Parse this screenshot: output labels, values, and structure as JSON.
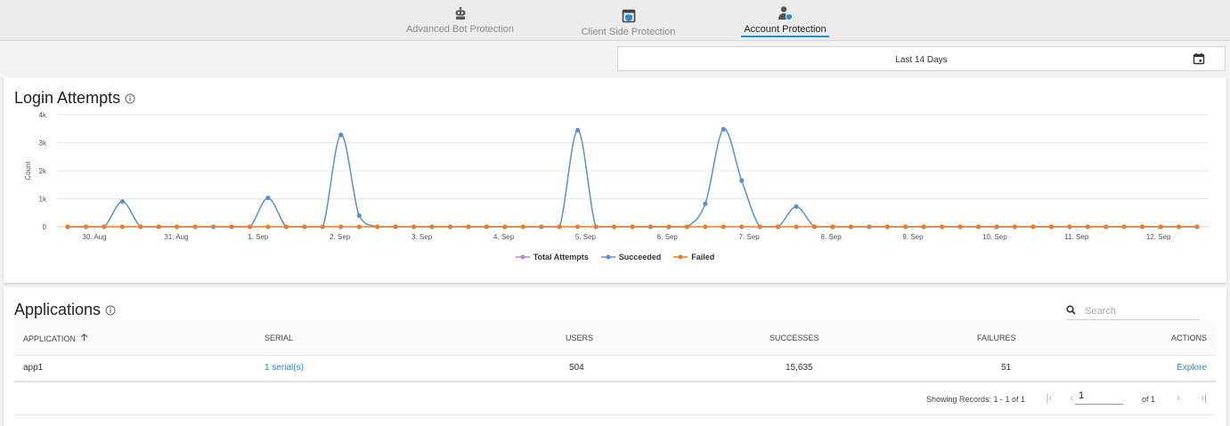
{
  "tabs": [
    {
      "label": "Advanced Bot Protection",
      "icon": "robot-icon",
      "active": false
    },
    {
      "label": "Client Side Protection",
      "icon": "browser-shield-icon",
      "active": false
    },
    {
      "label": "Account Protection",
      "icon": "user-shield-icon",
      "active": true
    }
  ],
  "date_range": {
    "label": "Last 14 Days",
    "icon": "calendar-icon"
  },
  "login_attempts": {
    "title": "Login Attempts",
    "info_icon": "info-icon"
  },
  "chart_data": {
    "type": "line",
    "title": "Login Attempts",
    "ylabel": "Count",
    "xlabel": "",
    "ylim": [
      0,
      4000
    ],
    "y_ticks": [
      "0",
      "1k",
      "2k",
      "3k",
      "4k"
    ],
    "x_ticks": [
      "30. Aug",
      "31. Aug",
      "1. Sep",
      "2. Sep",
      "3. Sep",
      "4. Sep",
      "5. Sep",
      "6. Sep",
      "7. Sep",
      "8. Sep",
      "9. Sep",
      "10. Sep",
      "11. Sep",
      "12. Sep"
    ],
    "legend": "bottom",
    "series": [
      {
        "name": "Total Attempts",
        "color": "#b388e0",
        "values": []
      },
      {
        "name": "Succeeded",
        "color": "#5b8fd1",
        "values": [
          0,
          0,
          0,
          900,
          0,
          0,
          0,
          0,
          0,
          0,
          0,
          1030,
          0,
          0,
          0,
          3280,
          400,
          0,
          0,
          0,
          0,
          0,
          0,
          0,
          0,
          0,
          0,
          0,
          3450,
          0,
          0,
          0,
          0,
          0,
          0,
          820,
          3480,
          1650,
          0,
          0,
          720,
          0,
          0,
          0,
          0,
          0,
          0,
          0,
          0,
          0,
          0,
          0,
          0,
          0,
          0,
          0,
          0,
          0,
          0,
          0,
          0,
          0,
          0
        ]
      },
      {
        "name": "Failed",
        "color": "#f07c2a",
        "values": [
          0,
          0,
          0,
          0,
          0,
          0,
          0,
          0,
          0,
          0,
          0,
          0,
          0,
          0,
          0,
          0,
          0,
          0,
          0,
          0,
          0,
          0,
          0,
          0,
          0,
          0,
          0,
          0,
          0,
          0,
          0,
          0,
          0,
          0,
          0,
          0,
          0,
          0,
          0,
          0,
          0,
          0,
          0,
          0,
          0,
          0,
          0,
          0,
          0,
          0,
          0,
          0,
          0,
          0,
          0,
          0,
          0,
          0,
          0,
          0,
          0,
          0,
          0
        ]
      }
    ]
  },
  "applications": {
    "title": "Applications",
    "info_icon": "info-icon",
    "search_placeholder": "Search",
    "columns": {
      "application": "APPLICATION",
      "serial": "SERIAL",
      "users": "USERS",
      "successes": "SUCCESSES",
      "failures": "FAILURES",
      "actions": "ACTIONS"
    },
    "rows": [
      {
        "application": "app1",
        "serial": "1 serial(s)",
        "users": "504",
        "successes": "15,635",
        "failures": "51",
        "action": "Explore"
      }
    ],
    "pager": {
      "records": "Showing Records: 1 - 1 of 1",
      "page": "1",
      "of": "of 1"
    }
  }
}
